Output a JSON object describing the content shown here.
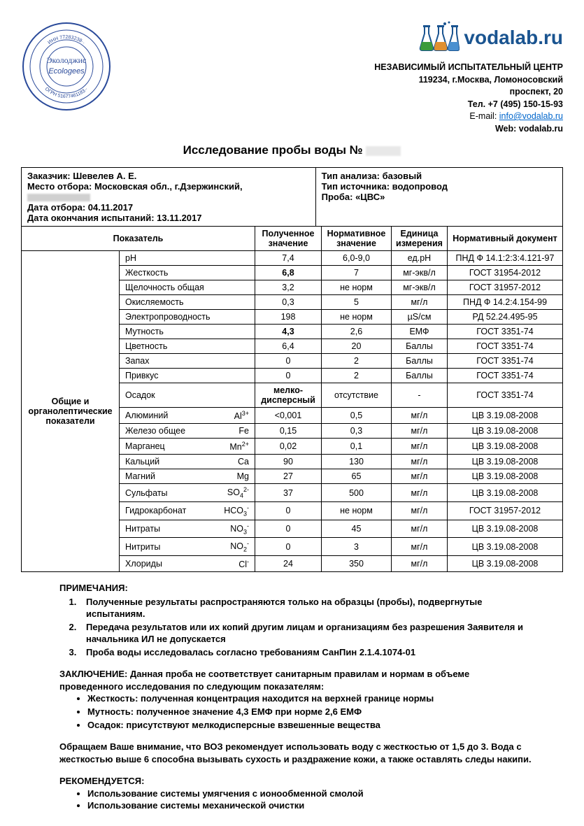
{
  "header": {
    "stamp": {
      "outer_text_top": "ИНН 77283238кк",
      "outer_text_bottom": "ОГРН 51677461183кк",
      "center_line1": "Эколоджис",
      "center_line2": "Ecologees",
      "color": "#2a4a9a"
    },
    "logo_text": "vodalab.ru",
    "logo_color": "#1a5490",
    "org_title": "НЕЗАВИСИМЫЙ ИСПЫТАТЕЛЬНЫЙ ЦЕНТР",
    "org_addr1": "119234, г.Москва, Ломоносовский",
    "org_addr2": "проспект, 20",
    "org_phone": "Тел. +7 (495) 150-15-93",
    "org_email_label": "E-mail: ",
    "org_email": "info@vodalab.ru",
    "org_web": "Web: vodalab.ru"
  },
  "title": "Исследование пробы воды №",
  "meta_left": {
    "customer_label": "Заказчик: ",
    "customer": "Шевелев А. Е.",
    "place_label": "Место отбора: ",
    "place": "Московская обл., г.Дзержинский,",
    "date_sample_label": "Дата отбора: ",
    "date_sample": "04.11.2017",
    "date_end_label": "Дата окончания испытаний: ",
    "date_end": "13.11.2017"
  },
  "meta_right": {
    "type_label": "Тип анализа: ",
    "type": "базовый",
    "source_label": "Тип источника: ",
    "source": "водопровод",
    "sample_label": "Проба: ",
    "sample": "«ЦВС»"
  },
  "table": {
    "headers": {
      "param": "Показатель",
      "obtained": "Полученное значение",
      "norm": "Нормативное значение",
      "unit": "Единица измерения",
      "doc": "Нормативный документ"
    },
    "group_label": "Общие и органолептические показатели",
    "rows": [
      {
        "name": "pH",
        "formula": "",
        "obtained": "7,4",
        "bold": false,
        "norm": "6,0-9,0",
        "unit": "ед.pH",
        "doc": "ПНД Ф 14.1:2:3:4.121-97"
      },
      {
        "name": "Жесткость",
        "formula": "",
        "obtained": "6,8",
        "bold": true,
        "norm": "7",
        "unit": "мг-экв/л",
        "doc": "ГОСТ 31954-2012"
      },
      {
        "name": "Щелочность общая",
        "formula": "",
        "obtained": "3,2",
        "bold": false,
        "norm": "не норм",
        "unit": "мг-экв/л",
        "doc": "ГОСТ 31957-2012"
      },
      {
        "name": "Окисляемость",
        "formula": "",
        "obtained": "0,3",
        "bold": false,
        "norm": "5",
        "unit": "мг/л",
        "doc": "ПНД Ф 14.2:4.154-99"
      },
      {
        "name": "Электропроводность",
        "formula": "",
        "obtained": "198",
        "bold": false,
        "norm": "не норм",
        "unit": "µS/см",
        "doc": "РД 52.24.495-95"
      },
      {
        "name": "Мутность",
        "formula": "",
        "obtained": "4,3",
        "bold": true,
        "norm": "2,6",
        "unit": "ЕМФ",
        "doc": "ГОСТ 3351-74"
      },
      {
        "name": "Цветность",
        "formula": "",
        "obtained": "6,4",
        "bold": false,
        "norm": "20",
        "unit": "Баллы",
        "doc": "ГОСТ 3351-74"
      },
      {
        "name": "Запах",
        "formula": "",
        "obtained": "0",
        "bold": false,
        "norm": "2",
        "unit": "Баллы",
        "doc": "ГОСТ 3351-74"
      },
      {
        "name": "Привкус",
        "formula": "",
        "obtained": "0",
        "bold": false,
        "norm": "2",
        "unit": "Баллы",
        "doc": "ГОСТ 3351-74"
      },
      {
        "name": "Осадок",
        "formula": "",
        "obtained": "мелко-дисперсный",
        "bold": true,
        "norm": "отсутствие",
        "unit": "-",
        "doc": "ГОСТ 3351-74"
      },
      {
        "name": "Алюминий",
        "formula": "Al<sup>3+</sup>",
        "obtained": "<0,001",
        "bold": false,
        "norm": "0,5",
        "unit": "мг/л",
        "doc": "ЦВ 3.19.08-2008"
      },
      {
        "name": "Железо общее",
        "formula": "Fe",
        "obtained": "0,15",
        "bold": false,
        "norm": "0,3",
        "unit": "мг/л",
        "doc": "ЦВ 3.19.08-2008"
      },
      {
        "name": "Марганец",
        "formula": "Mn<sup>2+</sup>",
        "obtained": "0,02",
        "bold": false,
        "norm": "0,1",
        "unit": "мг/л",
        "doc": "ЦВ 3.19.08-2008"
      },
      {
        "name": "Кальций",
        "formula": "Ca",
        "obtained": "90",
        "bold": false,
        "norm": "130",
        "unit": "мг/л",
        "doc": "ЦВ 3.19.08-2008"
      },
      {
        "name": "Магний",
        "formula": "Mg",
        "obtained": "27",
        "bold": false,
        "norm": "65",
        "unit": "мг/л",
        "doc": "ЦВ 3.19.08-2008"
      },
      {
        "name": "Сульфаты",
        "formula": "SO<sub>4</sub><sup>2-</sup>",
        "obtained": "37",
        "bold": false,
        "norm": "500",
        "unit": "мг/л",
        "doc": "ЦВ 3.19.08-2008"
      },
      {
        "name": "Гидрокарбонат",
        "formula": "HCO<sub>3</sub><sup>-</sup>",
        "obtained": "0",
        "bold": false,
        "norm": "не норм",
        "unit": "мг/л",
        "doc": "ГОСТ 31957-2012"
      },
      {
        "name": "Нитраты",
        "formula": "NO<sub>3</sub><sup>-</sup>",
        "obtained": "0",
        "bold": false,
        "norm": "45",
        "unit": "мг/л",
        "doc": "ЦВ 3.19.08-2008"
      },
      {
        "name": "Нитриты",
        "formula": "NO<sub>2</sub><sup>-</sup>",
        "obtained": "0",
        "bold": false,
        "norm": "3",
        "unit": "мг/л",
        "doc": "ЦВ 3.19.08-2008"
      },
      {
        "name": "Хлориды",
        "formula": "Cl<sup>-</sup>",
        "obtained": "24",
        "bold": false,
        "norm": "350",
        "unit": "мг/л",
        "doc": "ЦВ 3.19.08-2008"
      }
    ]
  },
  "notes": {
    "title": "ПРИМЕЧАНИЯ:",
    "items": [
      "Полученные результаты распространяются только на образцы (пробы), подвергнутые испытаниям.",
      "Передача результатов или их копий другим лицам и организациям без разрешения Заявителя и начальника ИЛ не допускается",
      "Проба воды исследовалась согласно требованиям СанПин 2.1.4.1074-01"
    ]
  },
  "conclusion": {
    "label": "ЗАКЛЮЧЕНИЕ: ",
    "text": "Данная проба не соответствует санитарным правилам и нормам в объеме проведенного исследования по следующим показателям:",
    "items": [
      "Жесткость: полученная концентрация находится на верхней границе нормы",
      "Мутность: полученное значение 4,3 ЕМФ при норме 2,6 ЕМФ",
      "Осадок: присутствуют мелкодисперсные взвешенные вещества"
    ]
  },
  "para": "Обращаем Ваше внимание, что ВОЗ рекомендует использовать воду с жесткостью от 1,5 до 3. Вода с жесткостью выше 6 способна вызывать сухость и раздражение кожи, а также оставлять следы накипи.",
  "recom": {
    "title": "РЕКОМЕНДУЕТСЯ:",
    "items": [
      "Использование системы умягчения с ионообменной смолой",
      "Использование системы механической очистки"
    ]
  }
}
